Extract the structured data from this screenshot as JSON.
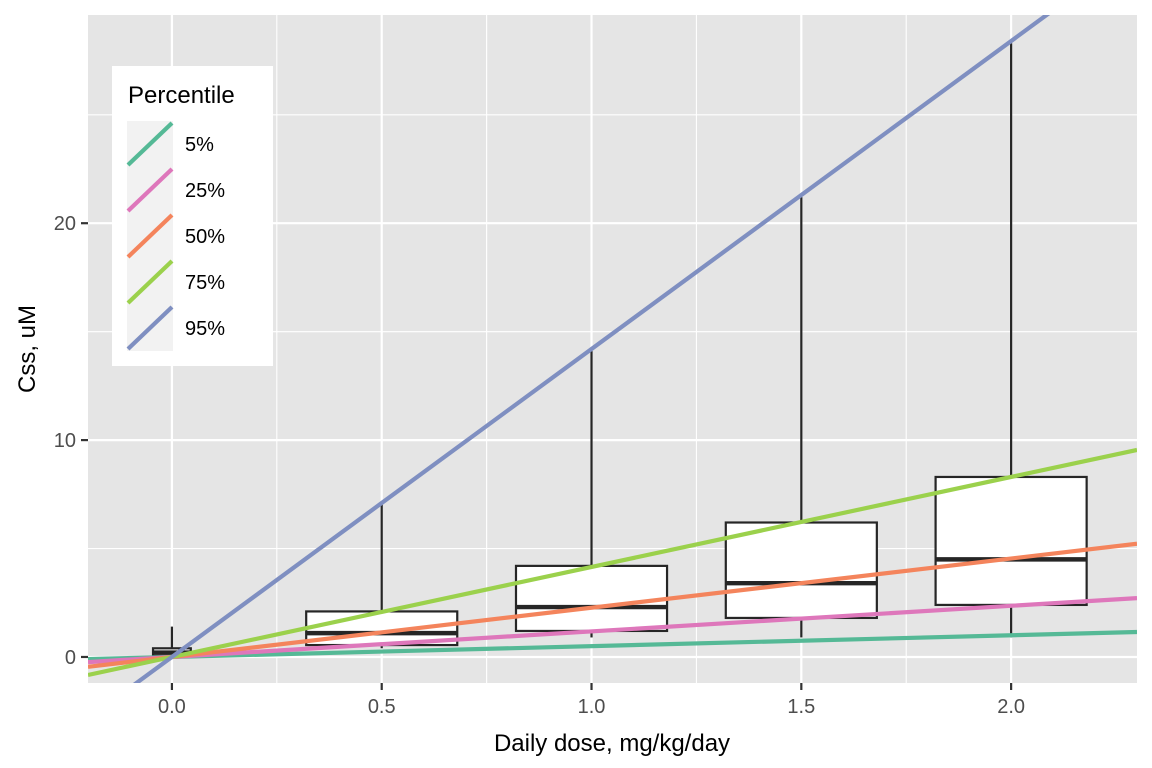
{
  "chart_data": {
    "type": "box+line",
    "title": "",
    "xlabel": "Daily dose, mg/kg/day",
    "ylabel": "Css, uM",
    "xlim": [
      -0.2,
      2.3
    ],
    "ylim": [
      -1.2,
      29.6
    ],
    "x_ticks": [
      0.0,
      0.5,
      1.0,
      1.5,
      2.0
    ],
    "x_tick_labels": [
      "0.0",
      "0.5",
      "1.0",
      "1.5",
      "2.0"
    ],
    "y_ticks": [
      0,
      10,
      20
    ],
    "y_tick_labels": [
      "0",
      "10",
      "20"
    ],
    "grid": true,
    "legend": {
      "title": "Percentile",
      "placement": "top-left",
      "entries": [
        "5%",
        "25%",
        "50%",
        "75%",
        "95%"
      ]
    },
    "boxes": [
      {
        "x": 0.0,
        "width": 0.09,
        "min": 0.0,
        "q1": 0.05,
        "median": 0.2,
        "q3": 0.4,
        "max": 1.4
      },
      {
        "x": 0.5,
        "width": 0.36,
        "min": 0.4,
        "q1": 0.55,
        "median": 1.1,
        "q3": 2.1,
        "max": 7.1
      },
      {
        "x": 1.0,
        "width": 0.36,
        "min": 0.9,
        "q1": 1.2,
        "median": 2.3,
        "q3": 4.2,
        "max": 14.1
      },
      {
        "x": 1.5,
        "width": 0.36,
        "min": 0.9,
        "q1": 1.8,
        "median": 3.4,
        "q3": 6.2,
        "max": 21.2
      },
      {
        "x": 2.0,
        "width": 0.36,
        "min": 0.9,
        "q1": 2.4,
        "median": 4.5,
        "q3": 8.3,
        "max": 28.3
      }
    ],
    "series": [
      {
        "name": "5%",
        "slope": 0.5,
        "color": "#55B996"
      },
      {
        "name": "25%",
        "slope": 1.18,
        "color": "#DE77BB"
      },
      {
        "name": "50%",
        "slope": 2.27,
        "color": "#F4845C"
      },
      {
        "name": "75%",
        "slope": 4.15,
        "color": "#9BD14C"
      },
      {
        "name": "95%",
        "slope": 14.2,
        "color": "#7F8FC1"
      }
    ],
    "colors": {
      "panel": "#E5E5E5",
      "grid": "#FFFFFF",
      "box_fill": "#FFFFFF",
      "box_line": "#262626"
    }
  }
}
